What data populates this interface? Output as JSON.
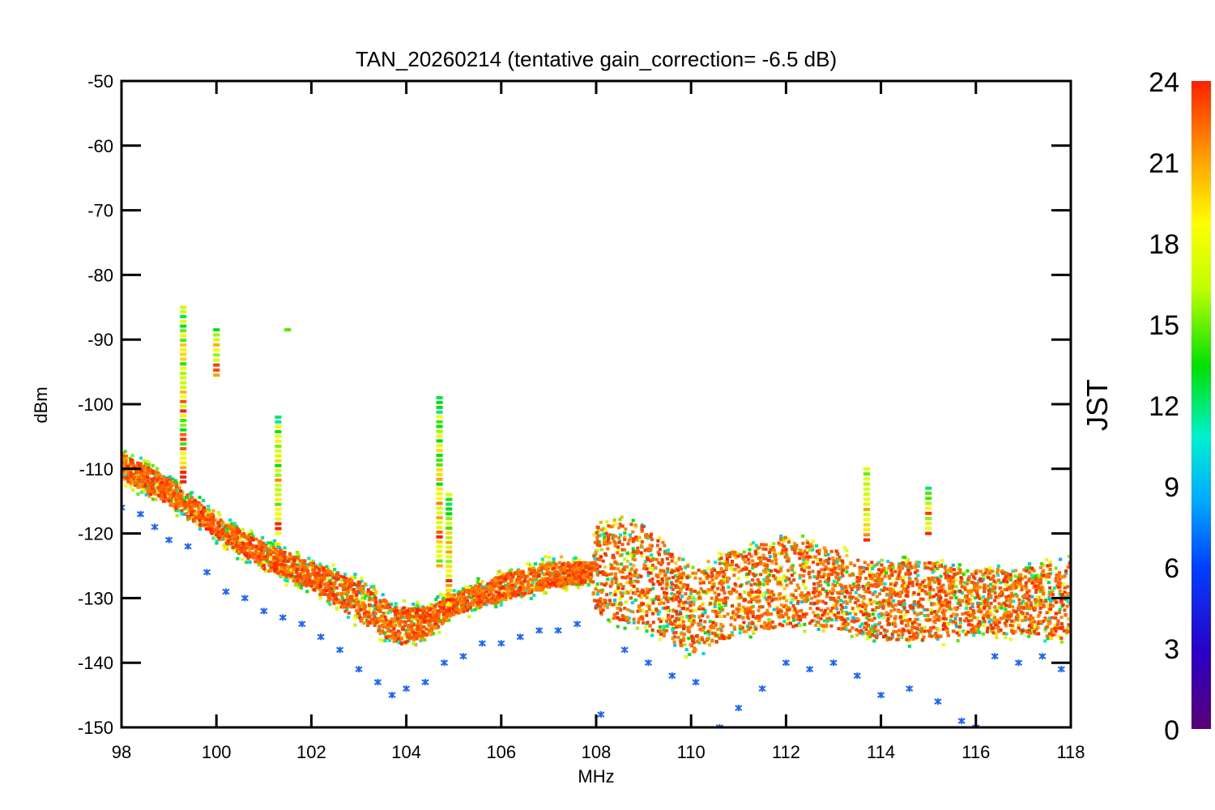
{
  "chart_data": {
    "type": "scatter",
    "title": "TAN_20260214 (tentative gain_correction= -6.5 dB)",
    "xlabel": "MHz",
    "ylabel": "dBm",
    "xlim": [
      98,
      118
    ],
    "ylim": [
      -150,
      -50
    ],
    "xticks": [
      "98",
      "100",
      "102",
      "104",
      "106",
      "108",
      "110",
      "112",
      "114",
      "116",
      "118"
    ],
    "yticks": [
      "-50",
      "-60",
      "-70",
      "-80",
      "-90",
      "-100",
      "-110",
      "-120",
      "-130",
      "-140",
      "-150"
    ],
    "color_variable": "JST",
    "colorbar": {
      "label": "JST",
      "range": [
        0,
        24
      ],
      "ticks": [
        "0",
        "3",
        "6",
        "9",
        "12",
        "15",
        "18",
        "21",
        "24"
      ],
      "colormap": [
        "#5a0078",
        "#2a00c8",
        "#0040ff",
        "#00a8ff",
        "#00f0d0",
        "#00e000",
        "#c0ff00",
        "#ffff00",
        "#ffa000",
        "#ff2000"
      ]
    },
    "marker": "asterisk",
    "noise_floor_envelope": {
      "x": [
        98,
        99,
        100,
        101,
        102,
        103,
        103.8,
        104.5,
        105,
        106,
        107,
        107.9,
        108,
        109,
        110,
        111,
        112,
        113,
        114,
        115,
        116,
        117,
        118
      ],
      "y_high": [
        -107,
        -111,
        -117,
        -121,
        -124,
        -127,
        -131,
        -131,
        -129,
        -126,
        -124,
        -124,
        -118,
        -118,
        -125,
        -122,
        -120,
        -122,
        -124,
        -124,
        -125,
        -125,
        -124
      ],
      "y_low": [
        -112,
        -116,
        -121,
        -126,
        -129,
        -134,
        -138,
        -136,
        -133,
        -131,
        -129,
        -128,
        -133,
        -135,
        -139,
        -136,
        -135,
        -135,
        -137,
        -137,
        -136,
        -136,
        -137
      ]
    },
    "minimum_trace_points": {
      "x": [
        98.0,
        98.4,
        98.7,
        99.0,
        99.4,
        99.8,
        100.2,
        100.6,
        101.0,
        101.4,
        101.8,
        102.2,
        102.6,
        103.0,
        103.4,
        103.7,
        104.0,
        104.4,
        104.8,
        105.2,
        105.6,
        106.0,
        106.4,
        106.8,
        107.2,
        107.6,
        108.1,
        108.6,
        109.1,
        109.6,
        110.1,
        110.6,
        111.0,
        111.5,
        112.0,
        112.5,
        113.0,
        113.5,
        114.0,
        114.6,
        115.2,
        115.7,
        116.0,
        116.4,
        116.9,
        117.4,
        117.8
      ],
      "y": [
        -116,
        -117,
        -119,
        -121,
        -122,
        -126,
        -129,
        -130,
        -132,
        -133,
        -134,
        -136,
        -138,
        -141,
        -143,
        -145,
        -144,
        -143,
        -140,
        -139,
        -137,
        -137,
        -136,
        -135,
        -135,
        -134,
        -148,
        -138,
        -140,
        -142,
        -143,
        -150,
        -147,
        -144,
        -140,
        -141,
        -140,
        -142,
        -145,
        -144,
        -146,
        -149,
        -150,
        -139,
        -140,
        -139,
        -141
      ]
    },
    "spikes": [
      {
        "x": 99.3,
        "y_top": -85,
        "y_bottom": -112
      },
      {
        "x": 100.0,
        "y_top": -88.5,
        "y_bottom": -95.5
      },
      {
        "x": 101.3,
        "y_top": -102,
        "y_bottom": -120
      },
      {
        "x": 101.5,
        "y_top": -88.5,
        "y_bottom": -88.5
      },
      {
        "x": 104.7,
        "y_top": -99,
        "y_bottom": -125
      },
      {
        "x": 104.9,
        "y_top": -114,
        "y_bottom": -131
      },
      {
        "x": 113.7,
        "y_top": -110,
        "y_bottom": -121
      },
      {
        "x": 115.0,
        "y_top": -113,
        "y_bottom": -120
      }
    ]
  }
}
